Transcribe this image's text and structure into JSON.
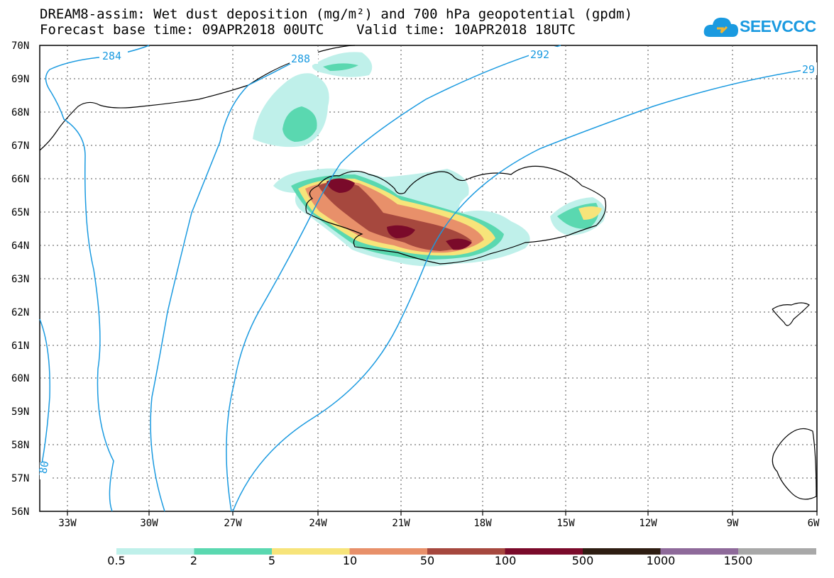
{
  "title": {
    "line1": "DREAM8-assim: Wet dust deposition (mg/m²) and 700 hPa geopotential (gpdm)",
    "line2": "Forecast base time: 09APR2018 00UTC    Valid time: 10APR2018 18UTC"
  },
  "logo": {
    "text": "SEEVCCC",
    "icon": "cloud-icon",
    "color": "#1a9ae0"
  },
  "map": {
    "lat_labels": [
      "70N",
      "69N",
      "68N",
      "67N",
      "66N",
      "65N",
      "64N",
      "63N",
      "62N",
      "61N",
      "60N",
      "59N",
      "58N",
      "57N",
      "56N"
    ],
    "lon_labels": [
      "33W",
      "30W",
      "27W",
      "24W",
      "21W",
      "18W",
      "15W",
      "12W",
      "9W",
      "6W"
    ],
    "contour_labels": [
      "284",
      "288",
      "292",
      "29",
      "80"
    ],
    "contour_color": "#1a9ae0"
  },
  "colorbar": {
    "labels": [
      "0.5",
      "2",
      "5",
      "10",
      "50",
      "100",
      "500",
      "1000",
      "1500"
    ],
    "colors": [
      "#bff0ea",
      "#5ad8b0",
      "#f7e47a",
      "#e8906a",
      "#a6483e",
      "#7a0a2a",
      "#2e1d12",
      "#8e6a9a",
      "#a8a8a8"
    ]
  }
}
